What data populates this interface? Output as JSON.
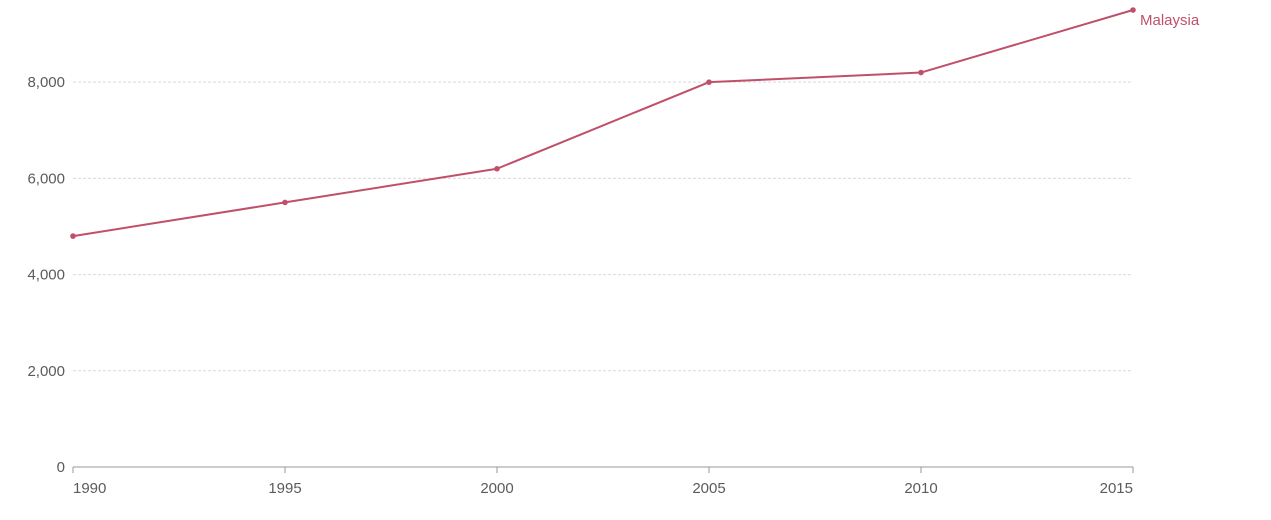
{
  "chart_data": {
    "type": "line",
    "title": "",
    "xlabel": "",
    "ylabel": "",
    "x": [
      1990,
      1995,
      2000,
      2005,
      2010,
      2015
    ],
    "xticks": [
      "1990",
      "1995",
      "2000",
      "2005",
      "2010",
      "2015"
    ],
    "xlim": [
      1990,
      2015
    ],
    "ylim": [
      0,
      9500
    ],
    "yticks": [
      0,
      2000,
      4000,
      6000,
      8000
    ],
    "ytick_labels": [
      "0",
      "2,000",
      "4,000",
      "6,000",
      "8,000"
    ],
    "grid": true,
    "legend": "inline-end-label",
    "series": [
      {
        "name": "Malaysia",
        "color": "#c0506a",
        "values": [
          4800,
          5500,
          6200,
          8000,
          8200,
          9500
        ]
      }
    ]
  }
}
